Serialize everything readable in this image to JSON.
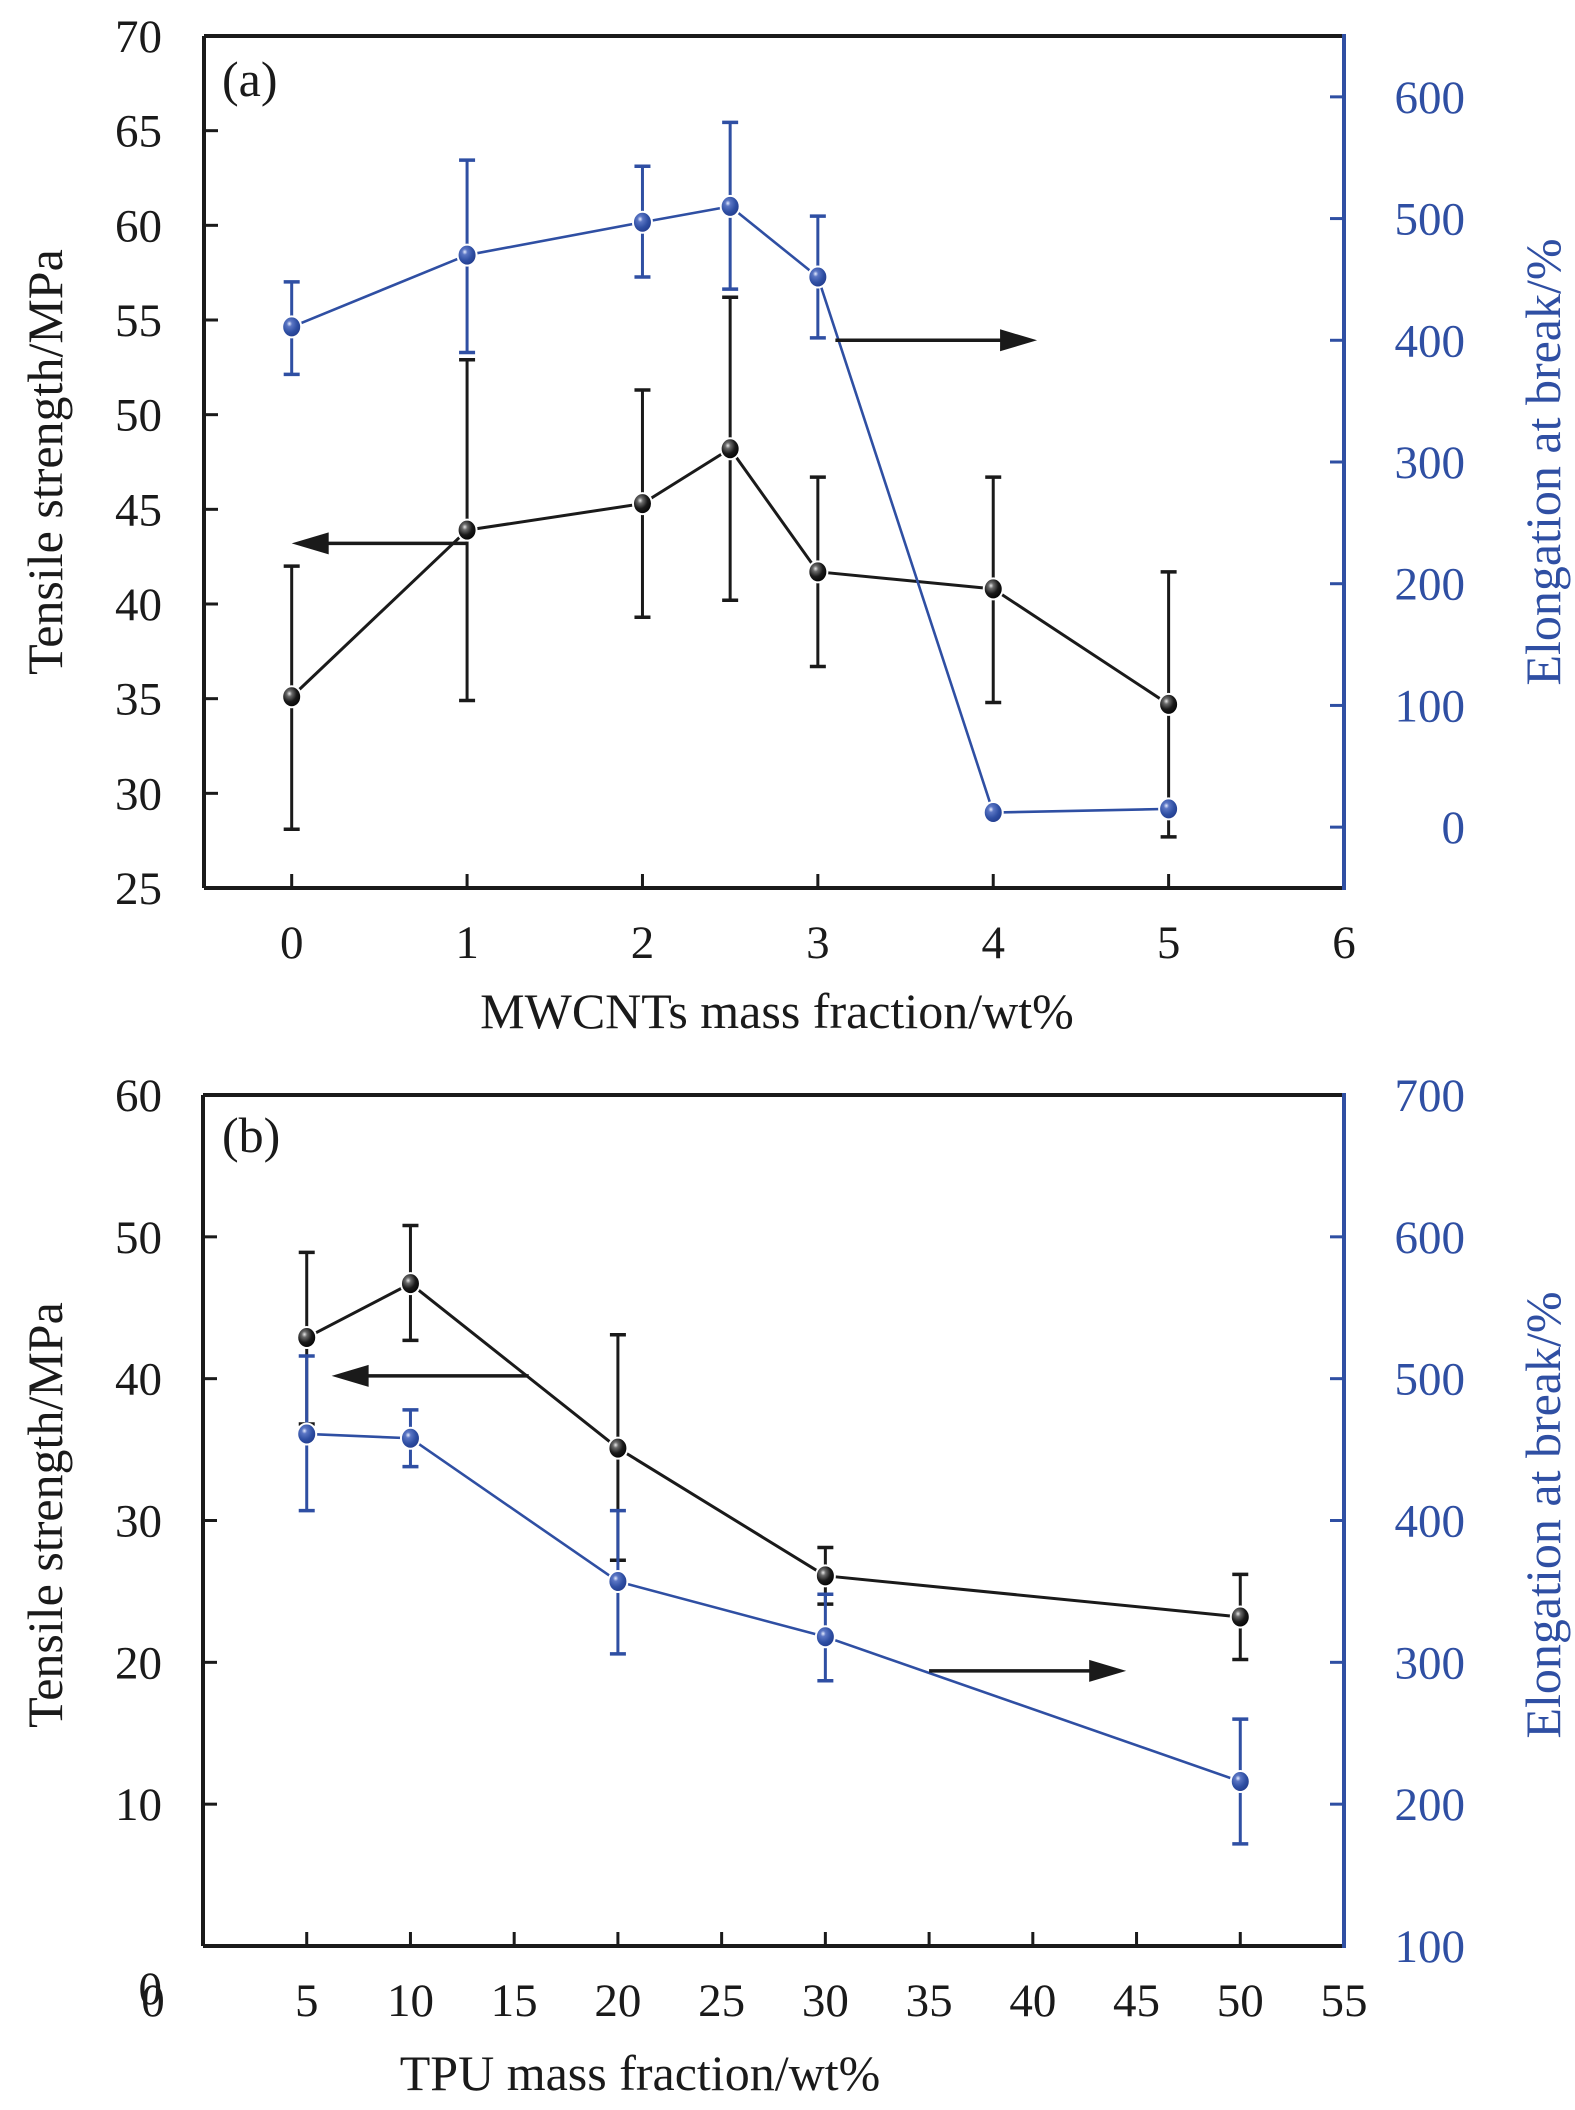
{
  "colors": {
    "left_series": "#1a1a1a",
    "right_series": "#2f4fa3",
    "background": "#ffffff"
  },
  "chart_data": [
    {
      "type": "line",
      "panel_label": "(a)",
      "xlabel": "MWCNTs mass fraction/wt%",
      "ylabel_left": "Tensile strength/MPa",
      "ylabel_right": "Elongation at break/%",
      "xlim": [
        -0.5,
        6
      ],
      "ylim_left": [
        25,
        70
      ],
      "ylim_right": [
        -50,
        650
      ],
      "x_ticks": [
        0,
        1,
        2,
        3,
        4,
        5,
        6
      ],
      "y_left_ticks": [
        25,
        30,
        35,
        40,
        45,
        50,
        55,
        60,
        65,
        70
      ],
      "y_right_ticks": [
        0,
        100,
        200,
        300,
        400,
        500,
        600
      ],
      "grid": false,
      "annotations": [
        {
          "type": "arrow",
          "direction": "left",
          "points_to": "left axis",
          "y": 43.2,
          "x_from": 1.0,
          "x_to": 0.0
        },
        {
          "type": "arrow",
          "direction": "right",
          "points_to": "right axis",
          "y": 400,
          "x_from": 3.1,
          "x_to": 4.25
        }
      ],
      "series": [
        {
          "name": "Tensile strength",
          "axis": "left",
          "x": [
            0,
            1,
            2,
            2.5,
            3,
            4,
            5
          ],
          "values": [
            35.1,
            43.9,
            45.3,
            48.2,
            41.7,
            40.8,
            34.7
          ],
          "err_upper": [
            42.0,
            52.9,
            51.3,
            56.2,
            46.7,
            46.7,
            41.7
          ],
          "err_lower": [
            28.1,
            34.9,
            39.3,
            40.2,
            36.7,
            34.8,
            27.7
          ]
        },
        {
          "name": "Elongation at break",
          "axis": "right",
          "x": [
            0,
            1,
            2,
            2.5,
            3,
            4,
            5
          ],
          "values": [
            411,
            470,
            497,
            510,
            452,
            12,
            15
          ],
          "err_upper": [
            448,
            548,
            543,
            579,
            502,
            null,
            null
          ],
          "err_lower": [
            372,
            390,
            452,
            442,
            402,
            null,
            null
          ]
        }
      ]
    },
    {
      "type": "line",
      "panel_label": "(b)",
      "xlabel": "TPU mass fraction/wt%",
      "ylabel_left": "Tensile strength/MPa",
      "ylabel_right": "Elongation at break/%",
      "xlim": [
        0,
        55
      ],
      "ylim_left": [
        0,
        60
      ],
      "ylim_right": [
        100,
        700
      ],
      "x_ticks": [
        0,
        5,
        10,
        15,
        20,
        25,
        30,
        35,
        40,
        45,
        50,
        55
      ],
      "y_left_ticks": [
        0,
        10,
        20,
        30,
        40,
        50,
        60
      ],
      "y_right_ticks": [
        100,
        200,
        300,
        400,
        500,
        600,
        700
      ],
      "grid": false,
      "annotations": [
        {
          "type": "arrow",
          "direction": "left",
          "points_to": "left axis",
          "y": 40.2,
          "x_from": 15.7,
          "x_to": 6.2
        },
        {
          "type": "arrow",
          "direction": "right",
          "points_to": "right axis",
          "y": 294,
          "x_from": 35,
          "x_to": 44.5
        }
      ],
      "series": [
        {
          "name": "Tensile strength",
          "axis": "left",
          "x": [
            5,
            10,
            20,
            30,
            50
          ],
          "values": [
            42.9,
            46.7,
            35.1,
            26.1,
            23.2
          ],
          "err_upper": [
            48.9,
            50.8,
            43.1,
            28.1,
            26.2
          ],
          "err_lower": [
            36.8,
            42.7,
            27.2,
            24.1,
            20.2
          ]
        },
        {
          "name": "Elongation at break",
          "axis": "right",
          "x": [
            5,
            10,
            20,
            30,
            50
          ],
          "values": [
            461,
            458,
            357,
            318,
            216
          ],
          "err_upper": [
            516,
            478,
            407,
            348,
            260
          ],
          "err_lower": [
            407,
            438,
            306,
            287,
            172
          ]
        }
      ]
    }
  ]
}
